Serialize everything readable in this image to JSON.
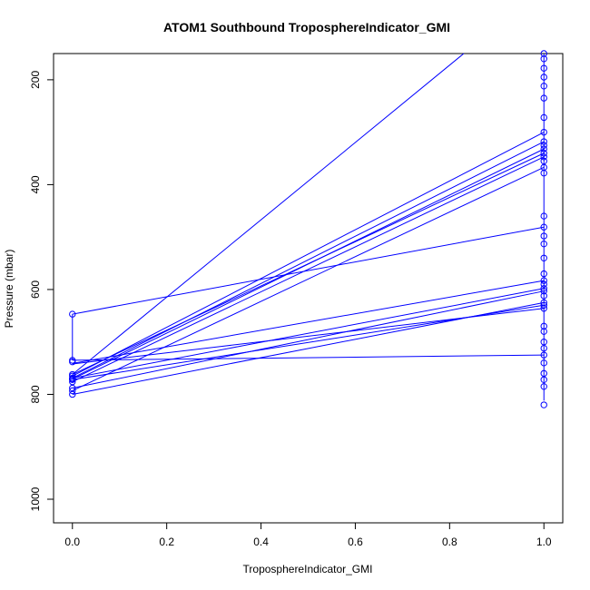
{
  "chart_data": {
    "type": "line",
    "title": "ATOM1 Southbound TroposphereIndicator_GMI",
    "xlabel": "TroposphereIndicator_GMI",
    "ylabel": "Pressure (mbar)",
    "xlim": [
      -0.04,
      1.04
    ],
    "ylim": [
      1045,
      150
    ],
    "y_reversed": true,
    "grid": false,
    "legend": "none",
    "series_color": "#0000ff",
    "x_ticks": [
      "0.0",
      "0.2",
      "0.4",
      "0.6",
      "0.8",
      "1.0"
    ],
    "x_tick_values": [
      0,
      0.2,
      0.4,
      0.6,
      0.8,
      1.0
    ],
    "y_ticks": [
      "200",
      "400",
      "600",
      "800",
      "1000"
    ],
    "y_tick_values": [
      200,
      400,
      600,
      800,
      1000
    ],
    "segments": [
      {
        "x": [
          0,
          1
        ],
        "y": [
          647,
          481
        ]
      },
      {
        "x": [
          0,
          0
        ],
        "y": [
          647,
          735
        ]
      },
      {
        "x": [
          0,
          1
        ],
        "y": [
          735,
          725
        ]
      },
      {
        "x": [
          0,
          0.83
        ],
        "y": [
          762,
          150
        ]
      },
      {
        "x": [
          0,
          1
        ],
        "y": [
          765,
          300
        ]
      },
      {
        "x": [
          0,
          1
        ],
        "y": [
          769,
          318
        ]
      },
      {
        "x": [
          0,
          1
        ],
        "y": [
          771,
          332
        ]
      },
      {
        "x": [
          0,
          1
        ],
        "y": [
          762,
          340
        ]
      },
      {
        "x": [
          0,
          1
        ],
        "y": [
          776,
          347
        ]
      },
      {
        "x": [
          0,
          1
        ],
        "y": [
          793,
          367
        ]
      },
      {
        "x": [
          0,
          1
        ],
        "y": [
          741,
          583
        ]
      },
      {
        "x": [
          0,
          1
        ],
        "y": [
          769,
          598
        ]
      },
      {
        "x": [
          0,
          1
        ],
        "y": [
          788,
          603
        ]
      },
      {
        "x": [
          0,
          1
        ],
        "y": [
          800,
          625
        ]
      },
      {
        "x": [
          0,
          1
        ],
        "y": [
          772,
          630
        ]
      },
      {
        "x": [
          0,
          1
        ],
        "y": [
          742,
          636
        ]
      },
      {
        "x": [
          1,
          1
        ],
        "y": [
          150,
          812
        ]
      }
    ],
    "points_x0": [
      647,
      735,
      738,
      762,
      765,
      769,
      771,
      772,
      776,
      788,
      793,
      800
    ],
    "points_x1": [
      150,
      160,
      178,
      195,
      212,
      235,
      272,
      300,
      318,
      325,
      332,
      340,
      347,
      355,
      367,
      378,
      460,
      481,
      498,
      513,
      540,
      570,
      583,
      590,
      598,
      603,
      612,
      625,
      630,
      636,
      670,
      680,
      700,
      712,
      725,
      740,
      760,
      772,
      785,
      820
    ]
  }
}
